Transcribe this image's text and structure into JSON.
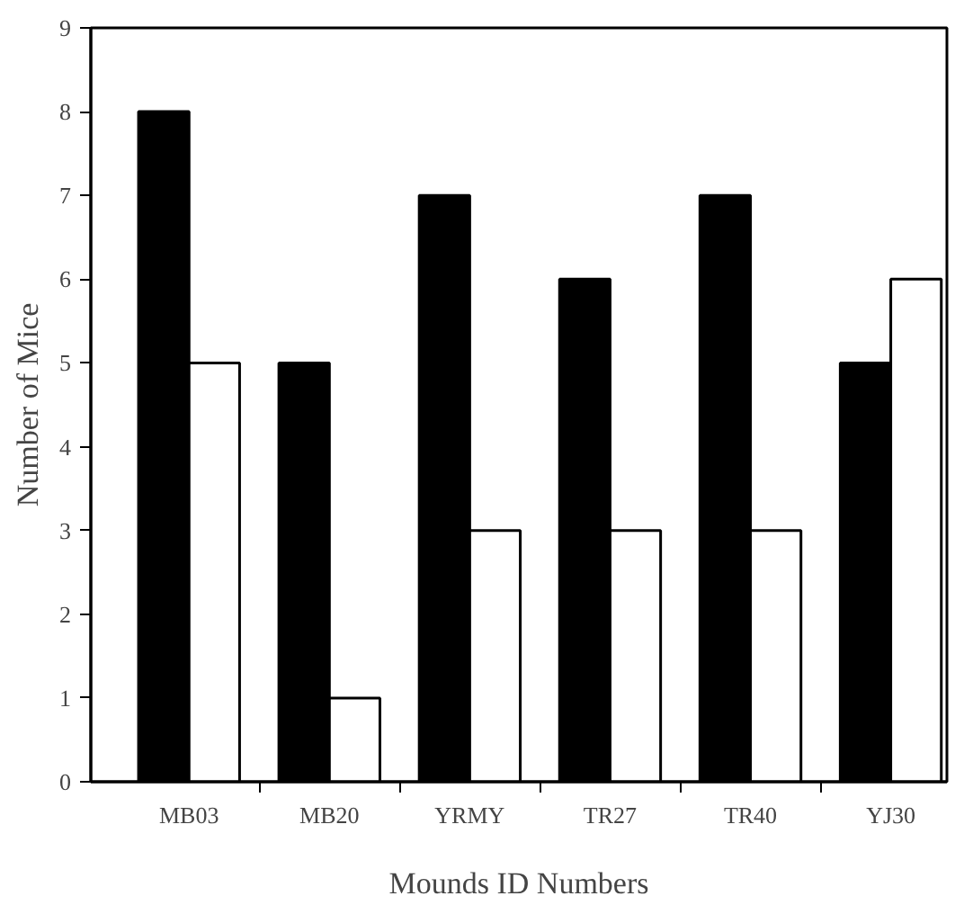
{
  "chart_data": {
    "type": "bar",
    "xlabel": "Mounds ID Numbers",
    "ylabel": "Number of Mice",
    "categories": [
      "MB03",
      "MB20",
      "YRMY",
      "TR27",
      "TR40",
      "YJ30"
    ],
    "series": [
      {
        "color": "#000000",
        "values": [
          8,
          5,
          7,
          6,
          7,
          5
        ]
      },
      {
        "color": "#ffffff",
        "values": [
          5,
          1,
          3,
          3,
          3,
          6
        ]
      }
    ],
    "ylim": [
      0,
      9
    ],
    "yticks": [
      0,
      1,
      2,
      3,
      4,
      5,
      6,
      7,
      8,
      9
    ],
    "grid": false
  }
}
